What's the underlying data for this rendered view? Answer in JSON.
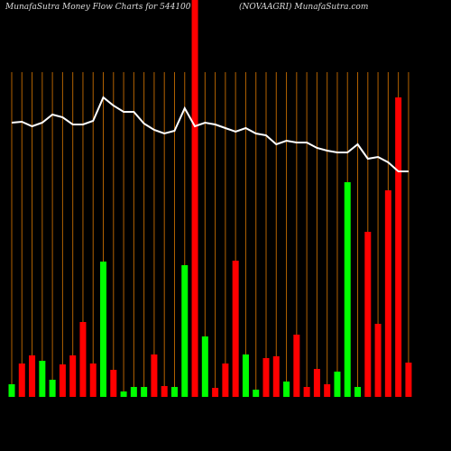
{
  "chart_data": {
    "type": "bar",
    "title": "MunafaSutra  Money Flow  Charts for 544100",
    "subtitle": "(NOVAAGRI) MunafaSutra.com",
    "categories": [
      null,
      null,
      null,
      null,
      null,
      null,
      null,
      null,
      null,
      null,
      null,
      null,
      null,
      null,
      null,
      null,
      null,
      null,
      null,
      null,
      null,
      null,
      null,
      null,
      null,
      null,
      null,
      null,
      null,
      null,
      null,
      null,
      null,
      null,
      null,
      null,
      null,
      null,
      null,
      null
    ],
    "values": [
      14,
      37,
      46,
      40,
      19,
      36,
      46,
      83,
      37,
      150,
      30,
      6,
      11,
      11,
      47,
      12,
      11,
      146,
      440,
      67,
      10,
      37,
      151,
      47,
      8,
      43,
      45,
      17,
      69,
      11,
      31,
      14,
      28,
      238,
      11,
      183,
      81,
      229,
      332,
      38
    ],
    "colors": [
      "#00ff00",
      "#ff0000",
      "#ff0000",
      "#00ff00",
      "#00ff00",
      "#ff0000",
      "#ff0000",
      "#ff0000",
      "#ff0000",
      "#00ff00",
      "#ff0000",
      "#00ff00",
      "#00ff00",
      "#00ff00",
      "#ff0000",
      "#ff0000",
      "#00ff00",
      "#00ff00",
      "#ff0000",
      "#00ff00",
      "#ff0000",
      "#ff0000",
      "#ff0000",
      "#00ff00",
      "#00ff00",
      "#ff0000",
      "#ff0000",
      "#00ff00",
      "#ff0000",
      "#ff0000",
      "#ff0000",
      "#ff0000",
      "#00ff00",
      "#00ff00",
      "#00ff00",
      "#ff0000",
      "#ff0000",
      "#ff0000",
      "#ff0000",
      "#ff0000"
    ],
    "line": {
      "color": "#ffffff",
      "values": [
        304,
        305,
        300,
        304,
        313,
        310,
        302,
        302,
        306,
        332,
        323,
        316,
        316,
        303,
        296,
        292,
        295,
        320,
        300,
        304,
        302,
        298,
        294,
        298,
        292,
        290,
        280,
        284,
        282,
        282,
        276,
        273,
        271,
        271,
        280,
        264,
        266,
        260,
        250,
        250
      ]
    },
    "grid_color": "#b36200",
    "ylim": [
      0,
      440
    ]
  }
}
